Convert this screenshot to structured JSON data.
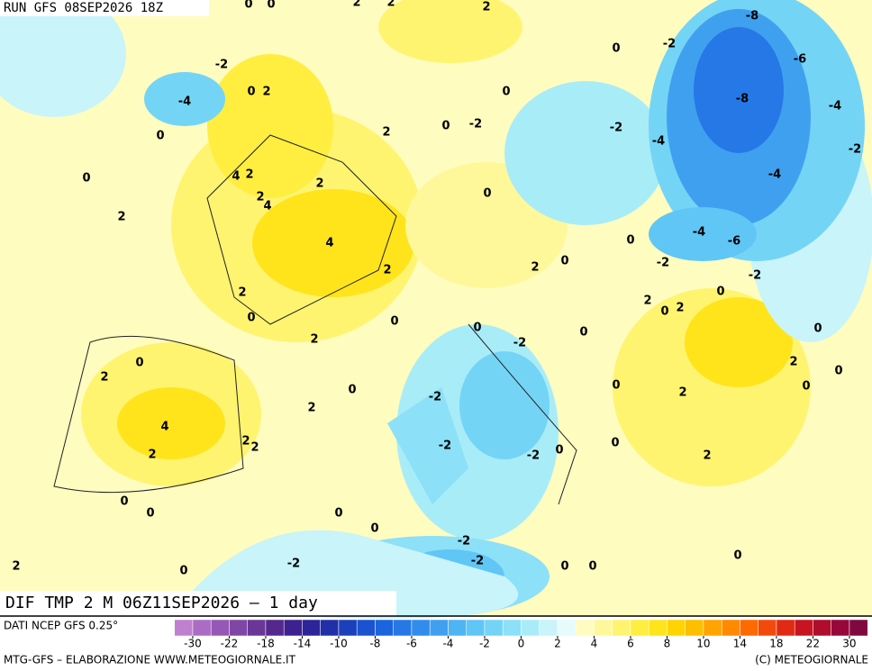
{
  "header": {
    "run": "RUN GFS 08SEP2026 18Z",
    "title": "DIF TMP 2 M 06Z11SEP2026 – 1 day"
  },
  "footer": {
    "source": "DATI NCEP GFS 0.25°",
    "credit": "MTG-GFS – ELABORAZIONE WWW.METEOGIORNALE.IT",
    "copyright": "(C) METEOGIORNALE"
  },
  "map": {
    "contour_labels": [
      0,
      0,
      2,
      2,
      2,
      -8,
      -2,
      0,
      -2,
      -6,
      0,
      2,
      -4,
      0,
      -8,
      -4,
      0,
      0,
      -2,
      -2,
      2,
      -4,
      -2,
      0,
      4,
      2,
      2,
      -4,
      0,
      2,
      4,
      2,
      4,
      0,
      -4,
      -6,
      -2,
      2,
      0,
      2,
      -2,
      2,
      0,
      2,
      0,
      2,
      0,
      0,
      0,
      0,
      -2,
      0,
      2,
      0,
      2,
      2,
      0,
      0,
      -2,
      0,
      2,
      0,
      2,
      4,
      2,
      2,
      2,
      -2,
      0,
      -2,
      0,
      2,
      0,
      0,
      0,
      0,
      -2,
      -2,
      -2,
      0,
      2,
      0,
      0,
      0
    ]
  },
  "colorbar": {
    "ticks": [
      -30,
      -22,
      -18,
      -14,
      -10,
      -8,
      -6,
      -4,
      -2,
      0,
      2,
      4,
      6,
      8,
      10,
      14,
      18,
      22,
      30
    ],
    "colors": [
      "#c080d0",
      "#ac6cc4",
      "#9658b6",
      "#8046a6",
      "#6a3698",
      "#54288e",
      "#3e2090",
      "#2c2498",
      "#2030a8",
      "#1c40bc",
      "#1a52d0",
      "#1c64de",
      "#2678e6",
      "#328cec",
      "#40a0f0",
      "#4eb4f4",
      "#60c6f6",
      "#74d4f6",
      "#8ce0f7",
      "#a8ecf8",
      "#c8f4fa",
      "#e6fbfc",
      "#fffcc0",
      "#fff89a",
      "#fff470",
      "#ffee40",
      "#ffe41c",
      "#ffd400",
      "#ffbe00",
      "#ffa400",
      "#ff8a00",
      "#ff6a00",
      "#f24a0a",
      "#e02a14",
      "#c81420",
      "#b00c2c",
      "#96083a",
      "#800840"
    ]
  }
}
